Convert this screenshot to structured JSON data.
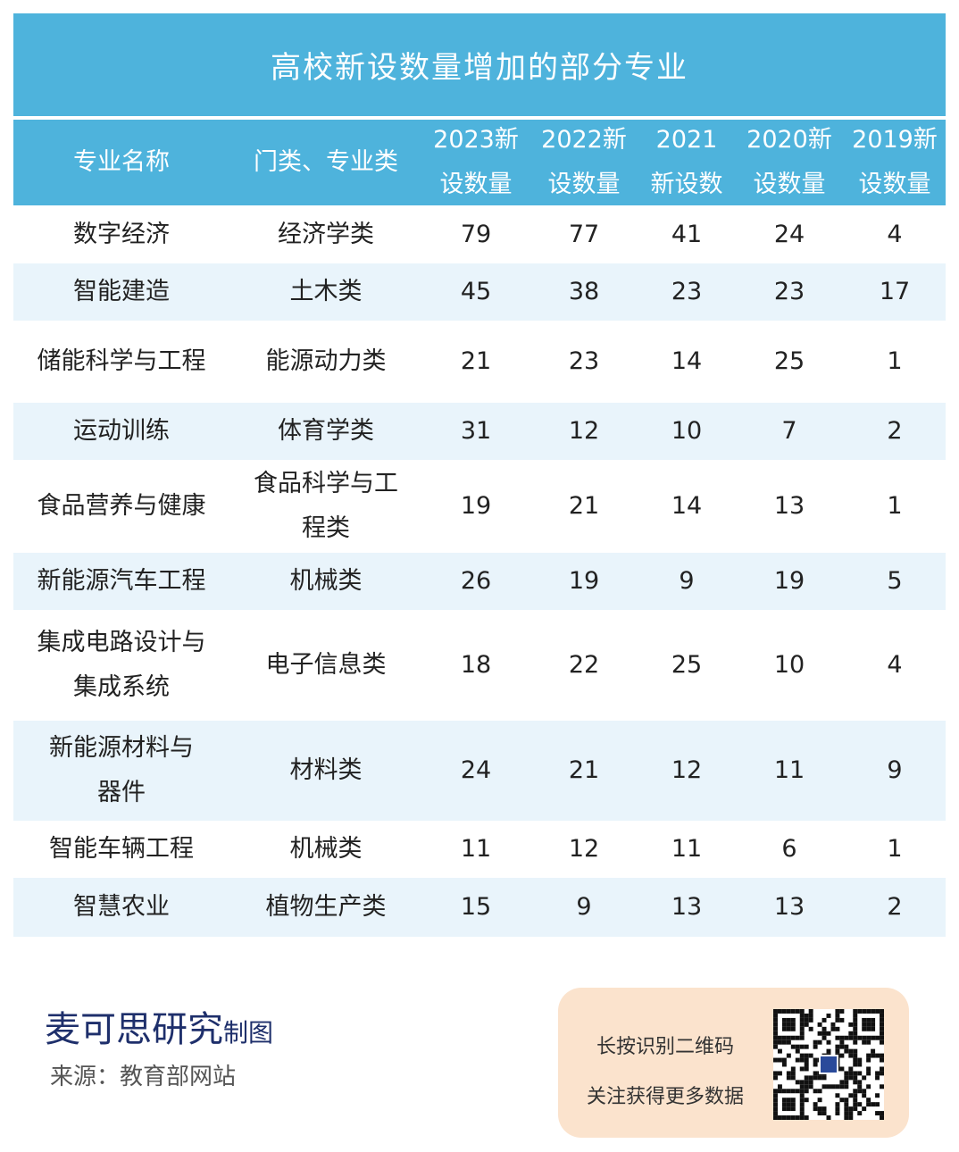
{
  "title": "高校新设数量增加的部分专业",
  "chart_data": {
    "type": "table",
    "columns": [
      [
        "专业名称"
      ],
      [
        "门类、专业类"
      ],
      [
        "2023新",
        "设数量"
      ],
      [
        "2022新",
        "设数量"
      ],
      [
        "2021",
        "新设数"
      ],
      [
        "2020新",
        "设数量"
      ],
      [
        "2019新",
        "设数量"
      ]
    ],
    "rows": [
      {
        "name": [
          "数字经济"
        ],
        "category": [
          "经济学类"
        ],
        "values": [
          "79",
          "77",
          "41",
          "24",
          "4"
        ]
      },
      {
        "name": [
          "智能建造"
        ],
        "category": [
          "土木类"
        ],
        "values": [
          "45",
          "38",
          "23",
          "23",
          "17"
        ]
      },
      {
        "name": [
          "储能科学与工程"
        ],
        "category": [
          "能源动力类"
        ],
        "values": [
          "21",
          "23",
          "14",
          "25",
          "1"
        ]
      },
      {
        "name": [
          "运动训练"
        ],
        "category": [
          "体育学类"
        ],
        "values": [
          "31",
          "12",
          "10",
          "7",
          "2"
        ]
      },
      {
        "name": [
          "食品营养与健康"
        ],
        "category": [
          "食品科学与工",
          "程类"
        ],
        "values": [
          "19",
          "21",
          "14",
          "13",
          "1"
        ]
      },
      {
        "name": [
          "新能源汽车工程"
        ],
        "category": [
          "机械类"
        ],
        "values": [
          "26",
          "19",
          "9",
          "19",
          "5"
        ]
      },
      {
        "name": [
          "集成电路设计与",
          "集成系统"
        ],
        "category": [
          "电子信息类"
        ],
        "values": [
          "18",
          "22",
          "25",
          "10",
          "4"
        ]
      },
      {
        "name": [
          "新能源材料与",
          "器件"
        ],
        "category": [
          "材料类"
        ],
        "values": [
          "24",
          "21",
          "12",
          "11",
          "9"
        ]
      },
      {
        "name": [
          "智能车辆工程"
        ],
        "category": [
          "机械类"
        ],
        "values": [
          "11",
          "12",
          "11",
          "6",
          "1"
        ]
      },
      {
        "name": [
          "智慧农业"
        ],
        "category": [
          "植物生产类"
        ],
        "values": [
          "15",
          "9",
          "13",
          "13",
          "2"
        ]
      }
    ]
  },
  "footer": {
    "brand": "麦可思研究",
    "brand_suffix": "制图",
    "source": "来源：教育部网站",
    "qr_line1": "长按识别二维码",
    "qr_line2": "关注获得更多数据"
  },
  "colors": {
    "header_bg": "#4eb3dc",
    "row_alt_bg": "#e9f4fb",
    "brand_color": "#1e2f6b",
    "qr_box_bg": "#fbe3cd"
  },
  "icons": [
    "qr-code-icon"
  ]
}
